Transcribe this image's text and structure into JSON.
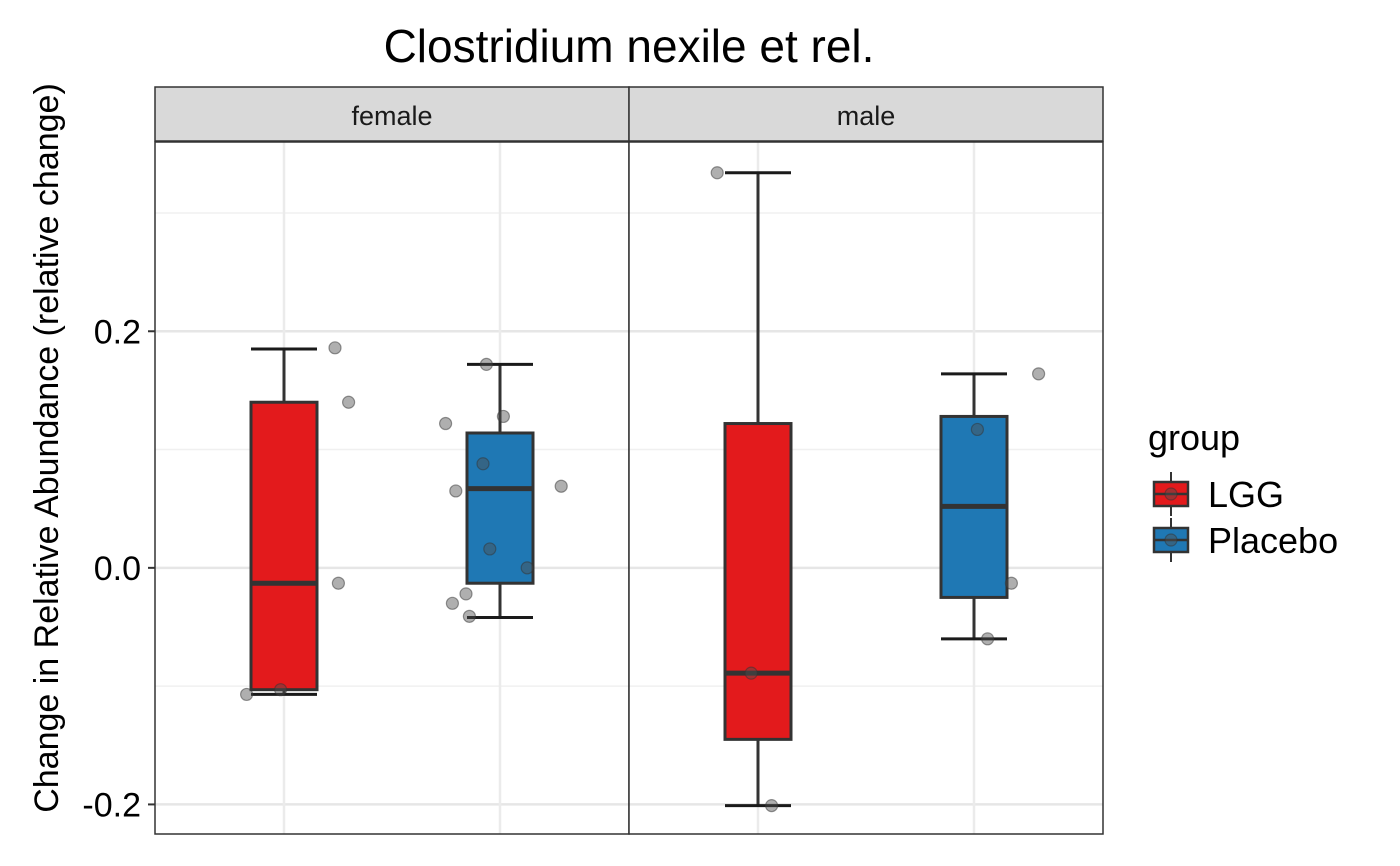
{
  "chart_data": {
    "type": "boxplot",
    "title": "Clostridium nexile et rel.",
    "ylabel": "Change in Relative Abundance (relative change)",
    "xlabel": "",
    "ylim": [
      -0.225,
      0.36
    ],
    "yticks": [
      -0.2,
      0.0,
      0.2
    ],
    "ytick_labels": [
      "-0.2",
      "0.0",
      "0.2"
    ],
    "grid": true,
    "legend": {
      "title": "group",
      "position": "right",
      "entries": [
        {
          "label": "LGG",
          "color": "#E31A1C"
        },
        {
          "label": "Placebo",
          "color": "#1F78B4"
        }
      ]
    },
    "panels": [
      {
        "strip": "female",
        "boxes": [
          {
            "group": "LGG",
            "color": "#E31A1C",
            "whisker_low": -0.107,
            "q1": -0.103,
            "median": -0.013,
            "q3": 0.14,
            "whisker_high": 0.185,
            "points": [
              [
                -0.55,
                -0.107
              ],
              [
                -0.05,
                -0.103
              ],
              [
                0.8,
                -0.013
              ],
              [
                0.95,
                0.14
              ],
              [
                0.75,
                0.186
              ]
            ]
          },
          {
            "group": "Placebo",
            "color": "#1F78B4",
            "whisker_low": -0.042,
            "q1": -0.013,
            "median": 0.067,
            "q3": 0.114,
            "whisker_high": 0.172,
            "points": [
              [
                -0.45,
                -0.041
              ],
              [
                0.4,
                0.0
              ],
              [
                -0.8,
                0.122
              ],
              [
                -0.65,
                0.065
              ],
              [
                -0.2,
                0.172
              ],
              [
                0.05,
                0.128
              ],
              [
                -0.25,
                0.088
              ],
              [
                -0.15,
                0.016
              ],
              [
                -0.7,
                -0.03
              ],
              [
                -0.5,
                -0.022
              ],
              [
                0.9,
                0.069
              ]
            ]
          }
        ]
      },
      {
        "strip": "male",
        "boxes": [
          {
            "group": "LGG",
            "color": "#E31A1C",
            "whisker_low": -0.201,
            "q1": -0.145,
            "median": -0.089,
            "q3": 0.122,
            "whisker_high": 0.334,
            "points": [
              [
                -0.6,
                0.334
              ],
              [
                -0.1,
                -0.089
              ],
              [
                0.2,
                -0.201
              ]
            ]
          },
          {
            "group": "Placebo",
            "color": "#1F78B4",
            "whisker_low": -0.06,
            "q1": -0.025,
            "median": 0.052,
            "q3": 0.128,
            "whisker_high": 0.164,
            "points": [
              [
                0.95,
                0.164
              ],
              [
                0.55,
                -0.013
              ],
              [
                0.2,
                -0.06
              ],
              [
                0.05,
                0.117
              ]
            ]
          }
        ]
      }
    ]
  }
}
